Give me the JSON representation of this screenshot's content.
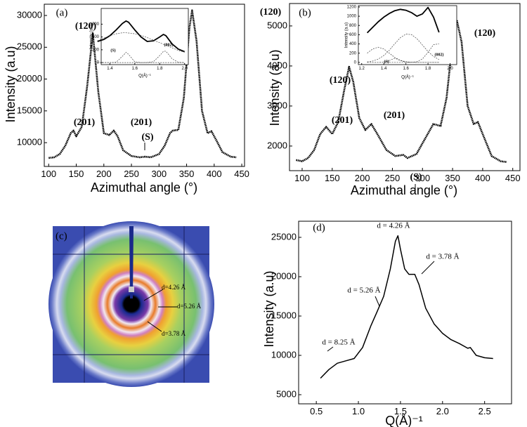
{
  "chart_data": [
    {
      "type": "line",
      "label": "(a)",
      "xlabel": "Azimuthal angle (°)",
      "ylabel": "Intensity (a.u)",
      "xlim": [
        92,
        455
      ],
      "ylim": [
        6260,
        31770
      ],
      "xticks": [
        100,
        150,
        200,
        250,
        300,
        350,
        400,
        450
      ],
      "yticks": [
        10000,
        15000,
        20000,
        25000,
        30000
      ],
      "color": "#000000",
      "x": [
        100,
        110,
        120,
        130,
        140,
        145,
        150,
        160,
        170,
        180,
        190,
        200,
        210,
        218,
        225,
        235,
        250,
        265,
        275,
        285,
        300,
        310,
        320,
        325,
        335,
        345,
        355,
        360,
        368,
        378,
        388,
        395,
        405,
        415,
        430,
        440
      ],
      "values": [
        7600,
        7700,
        8200,
        9500,
        11500,
        11900,
        11000,
        12500,
        19000,
        27200,
        18000,
        11500,
        11200,
        11900,
        11000,
        8800,
        7900,
        7700,
        7800,
        7700,
        8200,
        9500,
        11500,
        11900,
        12000,
        17000,
        28000,
        30800,
        26000,
        15000,
        11500,
        11800,
        10200,
        8500,
        7800,
        7700
      ],
      "annotations": [
        "(201)",
        "(120)",
        "(201)",
        "(S)",
        "(120)"
      ],
      "inset": {
        "type": "line",
        "xlabel": "Q(Å)⁻¹",
        "ylabel": "Intensity (a.u)",
        "xlim": [
          1.33,
          2.03
        ],
        "ylim": [
          -32,
          846
        ],
        "xticks": [
          1.4,
          1.6,
          1.8,
          {
            "value": 2,
            "label": "2.0"
          }
        ],
        "yticks": [
          0,
          200,
          400,
          600
        ],
        "x": [
          1.3,
          1.35,
          1.4,
          1.45,
          1.5,
          1.53,
          1.55,
          1.6,
          1.65,
          1.7,
          1.75,
          1.8,
          1.83,
          1.85,
          1.9,
          1.95,
          2.0
        ],
        "series": [
          {
            "color": "#000000",
            "style": "solid",
            "values": [
              330,
              360,
              420,
              510,
              610,
              650,
              630,
              510,
              400,
              330,
              340,
              400,
              440,
              420,
              290,
              210,
              170
            ]
          },
          {
            "color": "#444444",
            "style": "dashed",
            "values": [
              340,
              380,
              420,
              450,
              465,
              465,
              462,
              450,
              425,
              390,
              350,
              310,
              285,
              270,
              230,
              190,
              160
            ]
          },
          {
            "color": "#444444",
            "style": "dashed",
            "values": [
              0,
              0,
              0,
              5,
              97,
              160,
              128,
              11,
              0,
              0,
              0,
              0,
              0,
              0,
              0,
              0,
              0
            ]
          },
          {
            "color": "#444444",
            "style": "dashed",
            "values": [
              0,
              0,
              0,
              0,
              0,
              0,
              0,
              0,
              0,
              1,
              14,
              109,
              175,
              178,
              58,
              4,
              0
            ]
          }
        ],
        "annotations": [
          "(S)",
          "(002)"
        ]
      }
    },
    {
      "type": "line",
      "label": "(b)",
      "xlabel": "Azimuthal angle (°)",
      "ylabel": "Intensity (a.u)",
      "xlim": [
        79,
        462
      ],
      "ylim": [
        1385,
        5560
      ],
      "xticks": [
        100,
        150,
        200,
        250,
        300,
        350,
        400,
        450
      ],
      "yticks": [
        2000,
        3000,
        4000,
        5000
      ],
      "color": "#000000",
      "x": [
        90,
        100,
        110,
        120,
        130,
        140,
        150,
        160,
        170,
        178,
        185,
        195,
        205,
        215,
        225,
        240,
        255,
        268,
        275,
        290,
        305,
        318,
        330,
        340,
        350,
        357,
        365,
        375,
        385,
        392,
        400,
        415,
        430,
        440
      ],
      "values": [
        1650,
        1620,
        1700,
        1900,
        2300,
        2480,
        2300,
        2600,
        3400,
        3980,
        3600,
        2700,
        2400,
        2550,
        2300,
        1900,
        1750,
        1780,
        1700,
        1800,
        2200,
        2550,
        2500,
        3200,
        4600,
        5150,
        4600,
        3000,
        2550,
        2600,
        2300,
        1750,
        1620,
        1600
      ],
      "annotations": [
        "(201)",
        "(120)",
        "(201)",
        "(S)",
        "(120)"
      ],
      "inset": {
        "type": "line",
        "xlabel": "Q(Å)⁻¹",
        "ylabel": "Intensity (a.u)",
        "xlim": [
          1.17,
          2.06
        ],
        "ylim": [
          -48,
          1230
        ],
        "xticks": [
          1.2,
          1.4,
          1.6,
          1.8,
          {
            "value": 2,
            "label": "2.0"
          }
        ],
        "yticks": [
          0,
          200,
          400,
          600,
          800,
          1000,
          1200
        ],
        "x": [
          1.25,
          1.3,
          1.35,
          1.4,
          1.45,
          1.5,
          1.55,
          1.6,
          1.65,
          1.7,
          1.75,
          1.8,
          1.85,
          1.9
        ],
        "series": [
          {
            "color": "#000000",
            "style": "solid",
            "values": [
              640,
              760,
              880,
              980,
              1060,
              1120,
              1150,
              1130,
              1080,
              1000,
              1050,
              1190,
              980,
              650
            ]
          },
          {
            "color": "#444444",
            "style": "dashed",
            "values": [
              200,
              291,
              330,
              291,
              200,
              107,
              45,
              14,
              4,
              0,
              0,
              0,
              0,
              0
            ]
          },
          {
            "color": "#444444",
            "style": "dashed",
            "values": [
              11,
              30,
              71,
              148,
              263,
              405,
              536,
              613,
              603,
              513,
              376,
              237,
              129,
              61
            ]
          },
          {
            "color": "#444444",
            "style": "dashed",
            "values": [
              0,
              0,
              0,
              0,
              0,
              0,
              0,
              0,
              0,
              15,
              75,
              219,
              384,
              403
            ]
          },
          {
            "color": "#444444",
            "style": "dashed",
            "values": [
              0,
              0,
              0,
              4,
              41,
              90,
              41,
              4,
              0,
              0,
              0,
              0,
              0,
              0
            ]
          }
        ],
        "annotations": [
          "(S)",
          "(002)"
        ]
      }
    },
    {
      "type": "image",
      "label": "(c)",
      "annotations": [
        "d=4.26 Å",
        "d=5.26 Å",
        "d=3.78 Å"
      ]
    },
    {
      "type": "line",
      "label": "(d)",
      "xlabel": "Q(Å)⁻¹",
      "ylabel": "Intensity (a.u)",
      "xlim": [
        0.29,
        2.82
      ],
      "ylim": [
        3840,
        27050
      ],
      "xticks": [
        0.5,
        {
          "value": 1,
          "label": "1.0"
        },
        1.5,
        {
          "value": 2,
          "label": "2.0"
        },
        2.5
      ],
      "yticks": [
        5000,
        10000,
        15000,
        20000,
        25000
      ],
      "color": "#000000",
      "x": [
        0.55,
        0.65,
        0.75,
        0.85,
        0.95,
        1.05,
        1.15,
        1.22,
        1.3,
        1.38,
        1.44,
        1.47,
        1.5,
        1.55,
        1.6,
        1.67,
        1.72,
        1.8,
        1.9,
        2.0,
        2.1,
        2.2,
        2.3,
        2.33,
        2.4,
        2.5,
        2.6
      ],
      "values": [
        7100,
        8200,
        9000,
        9300,
        9600,
        11000,
        13800,
        15500,
        17500,
        21000,
        24500,
        25200,
        23500,
        21000,
        20300,
        20300,
        19000,
        16000,
        14000,
        12800,
        12000,
        11500,
        10900,
        11000,
        10000,
        9700,
        9600
      ],
      "annotations": [
        "d = 4.26 Å",
        "d = 3.78 Å",
        "d = 5.26 Å",
        "d = 8.25 Å"
      ]
    }
  ]
}
